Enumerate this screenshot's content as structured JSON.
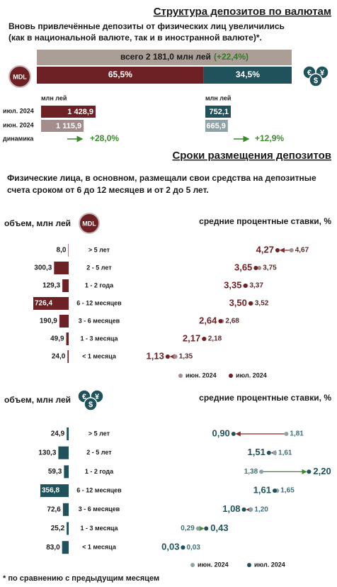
{
  "currency_structure": {
    "title": "Структура депозитов по валютам",
    "text_lines": [
      "Вновь привлечённые депозиты от физических лиц увеличились",
      "(как в национальной валюте, так и в иностранной валюте)*."
    ],
    "mdl_icon": "MDL",
    "fx_icon": [
      "€",
      "¥",
      "$"
    ],
    "total": {
      "label": "всего 2 181,0 млн лей",
      "change": "(+22,4%)"
    },
    "split": {
      "values": [
        65.5,
        34.5
      ],
      "value_labels": [
        "65,5%",
        "34,5%"
      ]
    },
    "table": {
      "unit": "млн лей",
      "row_labels": [
        "июл. 2024",
        "июн. 2024",
        "динамика"
      ],
      "mdl": {
        "values": [
          1428.9,
          1115.9
        ],
        "value_labels": [
          "1 428,9",
          "1 115,9"
        ],
        "change": "+28,0%"
      },
      "fx": {
        "values": [
          752.1,
          665.9
        ],
        "value_labels": [
          "752,1",
          "665,9"
        ],
        "change": "+12,9%"
      }
    }
  },
  "maturity": {
    "title": "Сроки размещения депозитов",
    "text_lines": [
      "Физические лица, в основном, размещали свои средства на депозитные",
      "счета сроком от 6 до 12 месяцев и от 2 до 5 лет."
    ],
    "volume_label": "объем, млн лей",
    "rates_label": "средние процентные ставки, %",
    "categories": [
      "> 5 лет",
      "2 - 5 лет",
      "1 - 2 года",
      "6 - 12 месяцев",
      "3 - 6 месяцев",
      "1 - 3 месяца",
      "< 1 месяца"
    ],
    "legend": [
      "июн. 2024",
      "июл. 2024"
    ],
    "panels": [
      {
        "color": "#6e2124",
        "light_color": "#a38c8c",
        "volumes": {
          "values": [
            8.0,
            300.3,
            129.3,
            726.4,
            190.9,
            49.9,
            24.0
          ],
          "value_labels": [
            "8,0",
            "300,3",
            "129,3",
            "726,4",
            "190,9",
            "49,9",
            "24,0"
          ]
        },
        "rates_jul": {
          "values": [
            4.27,
            3.65,
            3.35,
            3.5,
            2.64,
            2.17,
            1.13
          ],
          "value_labels": [
            "4,27",
            "3,65",
            "3,35",
            "3,50",
            "2,64",
            "2,17",
            "1,13"
          ]
        },
        "rates_jun": {
          "values": [
            4.67,
            3.75,
            3.37,
            3.52,
            2.68,
            2.18,
            1.35
          ],
          "value_labels": [
            "4,67",
            "3,75",
            "3,37",
            "3,52",
            "2,68",
            "2,18",
            "1,35"
          ]
        }
      },
      {
        "color": "#1f525b",
        "light_color": "#8ea3a8",
        "volumes": {
          "values": [
            24.9,
            130.3,
            59.3,
            356.8,
            72.6,
            25.2,
            83.0
          ],
          "value_labels": [
            "24,9",
            "130,3",
            "59,3",
            "356,8",
            "72,6",
            "25,2",
            "83,0"
          ]
        },
        "rates_jul": {
          "values": [
            0.9,
            1.51,
            2.2,
            1.61,
            1.08,
            0.43,
            0.03
          ],
          "value_labels": [
            "0,90",
            "1,51",
            "2,20",
            "1,61",
            "1,08",
            "0,43",
            "0,03"
          ]
        },
        "rates_jun": {
          "values": [
            1.81,
            1.61,
            1.38,
            1.65,
            1.2,
            0.29,
            0.03
          ],
          "value_labels": [
            "1,81",
            "1,61",
            "1,38",
            "1,65",
            "1,20",
            "0,29",
            "0,03"
          ]
        }
      }
    ]
  },
  "footnote": "* по сравнению с предыдущим месяцем"
}
